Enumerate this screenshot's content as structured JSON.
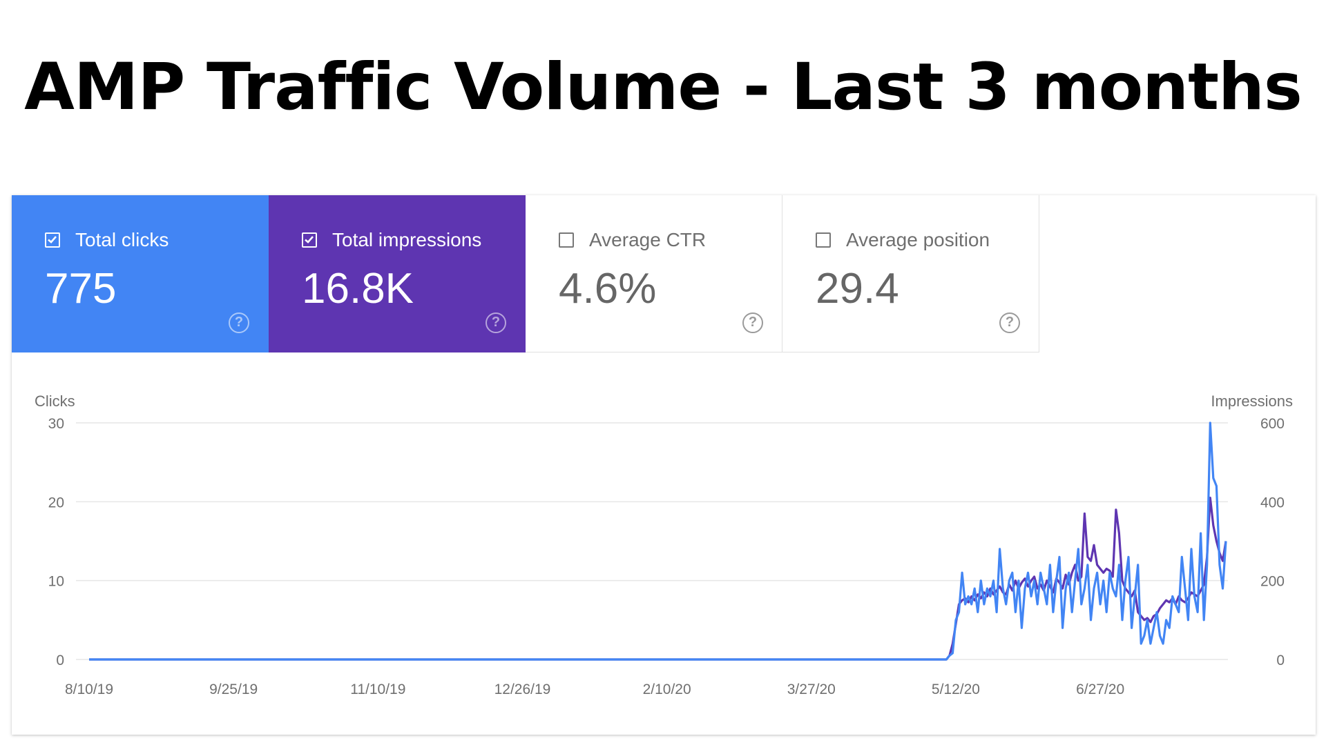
{
  "page_title": "AMP Traffic Volume - Last 3 months",
  "colors": {
    "clicks": "#4285f4",
    "impressions": "#5e35b1",
    "grid": "#e6e6e6",
    "text": "#6f6f6f"
  },
  "metrics": [
    {
      "label": "Total clicks",
      "value": "775",
      "checked": true,
      "help": "?"
    },
    {
      "label": "Total impressions",
      "value": "16.8K",
      "checked": true,
      "help": "?"
    },
    {
      "label": "Average CTR",
      "value": "4.6%",
      "checked": false,
      "help": "?"
    },
    {
      "label": "Average position",
      "value": "29.4",
      "checked": false,
      "help": "?"
    }
  ],
  "chart_data": {
    "type": "line",
    "ylabel_left": "Clicks",
    "ylabel_right": "Impressions",
    "ylim_left": [
      0,
      30
    ],
    "ylim_right": [
      0,
      600
    ],
    "yticks_left": [
      "0",
      "10",
      "20",
      "30"
    ],
    "yticks_right": [
      "0",
      "200",
      "400",
      "600"
    ],
    "x_range": [
      "2019-08-10",
      "2020-08-06"
    ],
    "x_tick_labels": [
      {
        "date": "2019-08-10",
        "label": "8/10/19"
      },
      {
        "date": "2019-09-25",
        "label": "9/25/19"
      },
      {
        "date": "2019-11-10",
        "label": "11/10/19"
      },
      {
        "date": "2019-12-26",
        "label": "12/26/19"
      },
      {
        "date": "2020-02-10",
        "label": "2/10/20"
      },
      {
        "date": "2020-03-27",
        "label": "3/27/20"
      },
      {
        "date": "2020-05-12",
        "label": "5/12/20"
      },
      {
        "date": "2020-06-27",
        "label": "6/27/20"
      }
    ],
    "grid": true,
    "series": [
      {
        "name": "Clicks",
        "axis": "left",
        "color": "#4285f4",
        "points": [
          [
            "2019-08-10",
            0
          ],
          [
            "2020-05-09",
            0
          ],
          [
            "2020-05-10",
            0.5
          ],
          [
            "2020-05-11",
            0.8
          ],
          [
            "2020-05-12",
            5
          ],
          [
            "2020-05-13",
            6
          ],
          [
            "2020-05-14",
            11
          ],
          [
            "2020-05-15",
            7
          ],
          [
            "2020-05-16",
            8
          ],
          [
            "2020-05-17",
            7
          ],
          [
            "2020-05-18",
            9
          ],
          [
            "2020-05-19",
            6
          ],
          [
            "2020-05-20",
            10
          ],
          [
            "2020-05-21",
            7
          ],
          [
            "2020-05-22",
            9
          ],
          [
            "2020-05-23",
            8
          ],
          [
            "2020-05-24",
            10
          ],
          [
            "2020-05-25",
            6
          ],
          [
            "2020-05-26",
            14
          ],
          [
            "2020-05-27",
            9
          ],
          [
            "2020-05-28",
            7
          ],
          [
            "2020-05-29",
            10
          ],
          [
            "2020-05-30",
            11
          ],
          [
            "2020-05-31",
            6
          ],
          [
            "2020-06-01",
            10
          ],
          [
            "2020-06-02",
            4
          ],
          [
            "2020-06-03",
            9
          ],
          [
            "2020-06-04",
            11
          ],
          [
            "2020-06-05",
            8
          ],
          [
            "2020-06-06",
            10
          ],
          [
            "2020-06-07",
            7
          ],
          [
            "2020-06-08",
            11
          ],
          [
            "2020-06-09",
            9
          ],
          [
            "2020-06-10",
            7
          ],
          [
            "2020-06-11",
            12
          ],
          [
            "2020-06-12",
            6
          ],
          [
            "2020-06-13",
            10
          ],
          [
            "2020-06-14",
            13
          ],
          [
            "2020-06-15",
            4
          ],
          [
            "2020-06-16",
            9
          ],
          [
            "2020-06-17",
            11
          ],
          [
            "2020-06-18",
            6
          ],
          [
            "2020-06-19",
            10
          ],
          [
            "2020-06-20",
            14
          ],
          [
            "2020-06-21",
            7
          ],
          [
            "2020-06-22",
            9
          ],
          [
            "2020-06-23",
            12
          ],
          [
            "2020-06-24",
            5
          ],
          [
            "2020-06-25",
            9
          ],
          [
            "2020-06-26",
            11
          ],
          [
            "2020-06-27",
            7
          ],
          [
            "2020-06-28",
            10
          ],
          [
            "2020-06-29",
            6
          ],
          [
            "2020-06-30",
            11
          ],
          [
            "2020-07-01",
            9
          ],
          [
            "2020-07-02",
            8
          ],
          [
            "2020-07-03",
            12
          ],
          [
            "2020-07-04",
            5
          ],
          [
            "2020-07-05",
            10
          ],
          [
            "2020-07-06",
            13
          ],
          [
            "2020-07-07",
            4
          ],
          [
            "2020-07-08",
            8
          ],
          [
            "2020-07-09",
            12
          ],
          [
            "2020-07-10",
            2
          ],
          [
            "2020-07-11",
            3
          ],
          [
            "2020-07-12",
            5
          ],
          [
            "2020-07-13",
            2
          ],
          [
            "2020-07-14",
            4
          ],
          [
            "2020-07-15",
            6
          ],
          [
            "2020-07-16",
            3
          ],
          [
            "2020-07-17",
            2
          ],
          [
            "2020-07-18",
            5
          ],
          [
            "2020-07-19",
            4
          ],
          [
            "2020-07-20",
            8
          ],
          [
            "2020-07-21",
            7
          ],
          [
            "2020-07-22",
            6
          ],
          [
            "2020-07-23",
            13
          ],
          [
            "2020-07-24",
            9
          ],
          [
            "2020-07-25",
            5
          ],
          [
            "2020-07-26",
            14
          ],
          [
            "2020-07-27",
            8
          ],
          [
            "2020-07-28",
            6
          ],
          [
            "2020-07-29",
            16
          ],
          [
            "2020-07-30",
            5
          ],
          [
            "2020-07-31",
            12
          ],
          [
            "2020-08-01",
            30
          ],
          [
            "2020-08-02",
            23
          ],
          [
            "2020-08-03",
            22
          ],
          [
            "2020-08-04",
            12
          ],
          [
            "2020-08-05",
            9
          ],
          [
            "2020-08-06",
            15
          ]
        ]
      },
      {
        "name": "Impressions",
        "axis": "right",
        "color": "#5e35b1",
        "points": [
          [
            "2019-08-10",
            0
          ],
          [
            "2020-05-09",
            0
          ],
          [
            "2020-05-10",
            10
          ],
          [
            "2020-05-11",
            40
          ],
          [
            "2020-05-12",
            90
          ],
          [
            "2020-05-13",
            140
          ],
          [
            "2020-05-14",
            150
          ],
          [
            "2020-05-15",
            155
          ],
          [
            "2020-05-16",
            145
          ],
          [
            "2020-05-17",
            160
          ],
          [
            "2020-05-18",
            150
          ],
          [
            "2020-05-19",
            165
          ],
          [
            "2020-05-20",
            155
          ],
          [
            "2020-05-21",
            170
          ],
          [
            "2020-05-22",
            160
          ],
          [
            "2020-05-23",
            180
          ],
          [
            "2020-05-24",
            165
          ],
          [
            "2020-05-25",
            175
          ],
          [
            "2020-05-26",
            185
          ],
          [
            "2020-05-27",
            170
          ],
          [
            "2020-05-28",
            165
          ],
          [
            "2020-05-29",
            190
          ],
          [
            "2020-05-30",
            175
          ],
          [
            "2020-05-31",
            200
          ],
          [
            "2020-06-01",
            180
          ],
          [
            "2020-06-02",
            195
          ],
          [
            "2020-06-03",
            205
          ],
          [
            "2020-06-04",
            185
          ],
          [
            "2020-06-05",
            200
          ],
          [
            "2020-06-06",
            210
          ],
          [
            "2020-06-07",
            180
          ],
          [
            "2020-06-08",
            190
          ],
          [
            "2020-06-09",
            175
          ],
          [
            "2020-06-10",
            200
          ],
          [
            "2020-06-11",
            185
          ],
          [
            "2020-06-12",
            170
          ],
          [
            "2020-06-13",
            205
          ],
          [
            "2020-06-14",
            195
          ],
          [
            "2020-06-15",
            180
          ],
          [
            "2020-06-16",
            215
          ],
          [
            "2020-06-17",
            190
          ],
          [
            "2020-06-18",
            220
          ],
          [
            "2020-06-19",
            240
          ],
          [
            "2020-06-20",
            200
          ],
          [
            "2020-06-21",
            210
          ],
          [
            "2020-06-22",
            370
          ],
          [
            "2020-06-23",
            260
          ],
          [
            "2020-06-24",
            250
          ],
          [
            "2020-06-25",
            290
          ],
          [
            "2020-06-26",
            240
          ],
          [
            "2020-06-27",
            230
          ],
          [
            "2020-06-28",
            220
          ],
          [
            "2020-06-29",
            230
          ],
          [
            "2020-06-30",
            225
          ],
          [
            "2020-07-01",
            210
          ],
          [
            "2020-07-02",
            380
          ],
          [
            "2020-07-03",
            320
          ],
          [
            "2020-07-04",
            200
          ],
          [
            "2020-07-05",
            180
          ],
          [
            "2020-07-06",
            170
          ],
          [
            "2020-07-07",
            160
          ],
          [
            "2020-07-08",
            175
          ],
          [
            "2020-07-09",
            120
          ],
          [
            "2020-07-10",
            110
          ],
          [
            "2020-07-11",
            100
          ],
          [
            "2020-07-12",
            105
          ],
          [
            "2020-07-13",
            95
          ],
          [
            "2020-07-14",
            110
          ],
          [
            "2020-07-15",
            115
          ],
          [
            "2020-07-16",
            130
          ],
          [
            "2020-07-17",
            140
          ],
          [
            "2020-07-18",
            150
          ],
          [
            "2020-07-19",
            145
          ],
          [
            "2020-07-20",
            155
          ],
          [
            "2020-07-21",
            140
          ],
          [
            "2020-07-22",
            160
          ],
          [
            "2020-07-23",
            150
          ],
          [
            "2020-07-24",
            145
          ],
          [
            "2020-07-25",
            155
          ],
          [
            "2020-07-26",
            170
          ],
          [
            "2020-07-27",
            165
          ],
          [
            "2020-07-28",
            160
          ],
          [
            "2020-07-29",
            175
          ],
          [
            "2020-07-30",
            190
          ],
          [
            "2020-07-31",
            260
          ],
          [
            "2020-08-01",
            410
          ],
          [
            "2020-08-02",
            340
          ],
          [
            "2020-08-03",
            300
          ],
          [
            "2020-08-04",
            270
          ],
          [
            "2020-08-05",
            250
          ],
          [
            "2020-08-06",
            300
          ]
        ]
      }
    ]
  }
}
